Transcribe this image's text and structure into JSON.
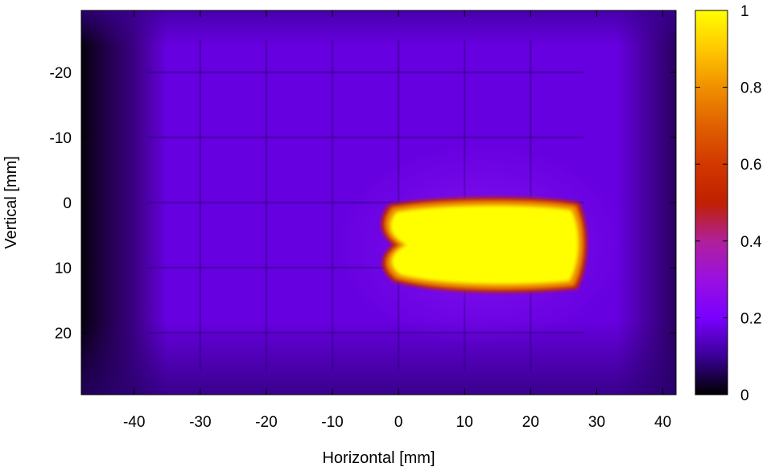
{
  "chart_data": {
    "type": "heatmap",
    "title": "",
    "xlabel": "Horizontal [mm]",
    "ylabel": "Vertical [mm]",
    "xlim": [
      -48,
      42
    ],
    "ylim": [
      -29.5,
      29.5
    ],
    "y_inverted": true,
    "x_ticks": [
      -40,
      -30,
      -20,
      -10,
      0,
      10,
      20,
      30,
      40
    ],
    "x_tick_labels": [
      "-40",
      "-30",
      "-20",
      "-10",
      "0",
      "10",
      "20",
      "30",
      "40"
    ],
    "y_ticks": [
      -20,
      -10,
      0,
      10,
      20
    ],
    "y_tick_labels": [
      "-20",
      "-10",
      "0",
      "10",
      "20"
    ],
    "colorbar": {
      "range": [
        0,
        1
      ],
      "ticks": [
        0,
        0.2,
        0.4,
        0.6,
        0.8,
        1
      ],
      "tick_labels": [
        "0",
        "0.2",
        "0.4",
        "0.6",
        "0.8",
        "1"
      ],
      "colormap": [
        {
          "v": 0.0,
          "color": "#000000"
        },
        {
          "v": 0.1,
          "color": "#3a0096"
        },
        {
          "v": 0.2,
          "color": "#7a00ff"
        },
        {
          "v": 0.3,
          "color": "#9a10e0"
        },
        {
          "v": 0.4,
          "color": "#b0209a"
        },
        {
          "v": 0.5,
          "color": "#c02000"
        },
        {
          "v": 0.6,
          "color": "#d23800"
        },
        {
          "v": 0.7,
          "color": "#e06000"
        },
        {
          "v": 0.8,
          "color": "#f09000"
        },
        {
          "v": 0.9,
          "color": "#ffc800"
        },
        {
          "v": 1.0,
          "color": "#ffff00"
        }
      ]
    },
    "background_level": 0.17,
    "hotspot": {
      "x_range": [
        -2,
        27
      ],
      "y_range": [
        0.5,
        12.5
      ],
      "peak_value": 1.0,
      "edge_value": 0.6
    },
    "grid_lines_x": [
      -40,
      -30,
      -20,
      -10,
      0,
      10,
      20
    ],
    "grid_lines_y": [
      -20,
      -10,
      0,
      10,
      20
    ],
    "grid": false,
    "legend": "colorbar-right"
  }
}
